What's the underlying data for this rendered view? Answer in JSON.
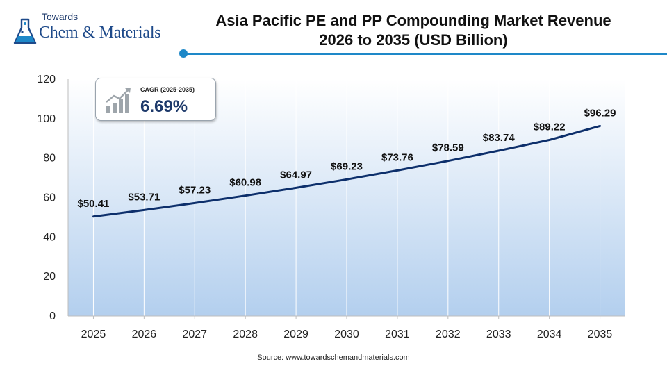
{
  "logo": {
    "top": "Towards",
    "brand": "Chem & Materials"
  },
  "title": {
    "line1": "Asia Pacific PE and PP Compounding Market Revenue",
    "line2": "2026 to 2035 (USD Billion)"
  },
  "cagr": {
    "label": "CAGR (2025-2035)",
    "value": "6.69%"
  },
  "source": "Source: www.towardschemandmaterials.com",
  "colors": {
    "line": "#0d2f6b",
    "accent": "#1e88c8",
    "area_top": "#ffffff",
    "area_bottom": "#b3cfee"
  },
  "chart_data": {
    "type": "area",
    "title": "Asia Pacific PE and PP Compounding Market Revenue 2026 to 2035 (USD Billion)",
    "xlabel": "",
    "ylabel": "",
    "x": [
      "2025",
      "2026",
      "2027",
      "2028",
      "2029",
      "2030",
      "2031",
      "2032",
      "2033",
      "2034",
      "2035"
    ],
    "values": [
      50.41,
      53.71,
      57.23,
      60.98,
      64.97,
      69.23,
      73.76,
      78.59,
      83.74,
      89.22,
      96.29
    ],
    "data_labels": [
      "$50.41",
      "$53.71",
      "$57.23",
      "$60.98",
      "$64.97",
      "$69.23",
      "$73.76",
      "$78.59",
      "$83.74",
      "$89.22",
      "$96.29"
    ],
    "y_ticks": [
      0,
      20,
      40,
      60,
      80,
      100,
      120
    ],
    "ylim": [
      0,
      120
    ],
    "grid": "vertical"
  }
}
